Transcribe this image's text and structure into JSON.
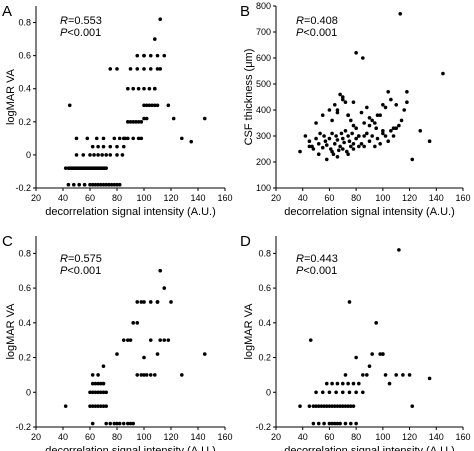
{
  "chart_data": [
    {
      "type": "scatter",
      "panel": "A",
      "xlabel": "decorrelation signal intensity (A.U.)",
      "ylabel": "logMAR VA",
      "xlim": [
        20,
        160
      ],
      "ylim": [
        -0.2,
        0.9
      ],
      "xticks": [
        20,
        40,
        60,
        80,
        100,
        120,
        140,
        160
      ],
      "yticks": [
        -0.2,
        0,
        0.2,
        0.4,
        0.6,
        0.8
      ],
      "ytick_labels": [
        "-0.2",
        "0",
        "0.2",
        "0.4",
        "0.6",
        "0.8"
      ],
      "stats": {
        "r_label": "R",
        "r_value": "=0.553",
        "p_label": "P",
        "p_value": "<0.001"
      },
      "x": [
        42,
        44,
        45,
        46,
        47,
        48,
        49,
        50,
        51,
        52,
        53,
        54,
        55,
        56,
        57,
        58,
        59,
        60,
        61,
        62,
        63,
        64,
        65,
        66,
        67,
        68,
        69,
        70,
        71,
        72,
        44,
        48,
        52,
        56,
        60,
        62,
        64,
        66,
        68,
        70,
        72,
        74,
        76,
        78,
        80,
        82,
        50,
        55,
        60,
        63,
        66,
        69,
        72,
        75,
        80,
        84,
        62,
        66,
        70,
        75,
        80,
        85,
        45,
        50,
        58,
        65,
        70,
        78,
        82,
        86,
        88,
        90,
        92,
        94,
        96,
        98,
        100,
        102,
        104,
        106,
        108,
        110,
        88,
        92,
        96,
        100,
        104,
        108,
        90,
        95,
        100,
        105,
        110,
        95,
        100,
        105,
        110,
        115,
        100,
        108,
        112,
        118,
        122,
        128,
        135,
        145,
        108,
        112,
        75,
        80,
        92,
        96,
        98,
        100,
        102,
        85,
        88
      ],
      "y": [
        -0.08,
        -0.08,
        -0.08,
        -0.08,
        -0.08,
        -0.08,
        -0.08,
        -0.08,
        -0.08,
        -0.08,
        -0.08,
        -0.08,
        -0.08,
        -0.08,
        -0.08,
        -0.08,
        -0.08,
        -0.08,
        -0.08,
        -0.08,
        -0.08,
        -0.08,
        -0.08,
        -0.08,
        -0.08,
        -0.08,
        -0.08,
        -0.08,
        -0.08,
        -0.08,
        -0.18,
        -0.18,
        -0.18,
        -0.18,
        -0.18,
        -0.18,
        -0.18,
        -0.18,
        -0.18,
        -0.18,
        -0.18,
        -0.18,
        -0.18,
        -0.18,
        -0.18,
        -0.18,
        0,
        0,
        0,
        0,
        0,
        0,
        0,
        0,
        0,
        0,
        0.05,
        0.05,
        0.05,
        0.05,
        0.05,
        0.05,
        0.3,
        0.1,
        0.1,
        0.1,
        0.1,
        0.1,
        0.1,
        0.1,
        0.2,
        0.2,
        0.2,
        0.2,
        0.2,
        0.2,
        0.3,
        0.3,
        0.3,
        0.3,
        0.3,
        0.3,
        0.4,
        0.4,
        0.4,
        0.4,
        0.4,
        0.4,
        0.52,
        0.52,
        0.52,
        0.52,
        0.52,
        0.6,
        0.6,
        0.6,
        0.6,
        0.6,
        0.6,
        0.7,
        0.82,
        0.3,
        0.22,
        0.1,
        0.08,
        0.22,
        0.4,
        0.52,
        0.52,
        0.52,
        0.1,
        0.1,
        0.1,
        0.22,
        0.22,
        0.1,
        0.1
      ]
    },
    {
      "type": "scatter",
      "panel": "B",
      "xlabel": "decorrelation signal intensity (A.U.)",
      "ylabel": "CSF thickness (μm)",
      "xlim": [
        20,
        160
      ],
      "ylim": [
        100,
        800
      ],
      "xticks": [
        20,
        40,
        60,
        80,
        100,
        120,
        140,
        160
      ],
      "xtick_labels": [
        "20",
        "40",
        "60",
        "80",
        "100",
        "120",
        "140",
        "160"
      ],
      "yticks": [
        100,
        200,
        300,
        400,
        500,
        600,
        700,
        800
      ],
      "stats": {
        "r_label": "R",
        "r_value": "=0.408",
        "p_label": "P",
        "p_value": "<0.001"
      },
      "x": [
        38,
        42,
        45,
        47,
        48,
        50,
        52,
        53,
        55,
        56,
        57,
        58,
        60,
        61,
        62,
        63,
        64,
        65,
        66,
        67,
        68,
        69,
        70,
        71,
        72,
        73,
        74,
        75,
        76,
        77,
        78,
        80,
        82,
        84,
        86,
        88,
        90,
        92,
        94,
        96,
        98,
        100,
        102,
        104,
        106,
        108,
        110,
        112,
        114,
        116,
        118,
        50,
        55,
        60,
        64,
        66,
        68,
        70,
        72,
        74,
        76,
        78,
        80,
        84,
        88,
        92,
        96,
        100,
        104,
        108,
        45,
        52,
        58,
        62,
        66,
        70,
        74,
        78,
        82,
        86,
        90,
        94,
        98,
        102,
        106,
        110,
        113,
        118,
        122,
        128,
        135,
        145,
        62,
        66,
        70,
        74,
        78,
        82,
        86,
        90,
        95,
        100,
        80,
        85
      ],
      "y": [
        240,
        300,
        280,
        260,
        250,
        290,
        270,
        310,
        255,
        300,
        280,
        265,
        290,
        250,
        310,
        230,
        270,
        300,
        285,
        245,
        260,
        310,
        290,
        275,
        320,
        240,
        300,
        280,
        260,
        310,
        250,
        290,
        300,
        270,
        260,
        310,
        280,
        300,
        260,
        290,
        270,
        310,
        300,
        280,
        320,
        300,
        330,
        340,
        360,
        400,
        430,
        350,
        380,
        400,
        420,
        390,
        460,
        440,
        430,
        380,
        360,
        340,
        330,
        390,
        410,
        360,
        380,
        420,
        470,
        330,
        260,
        230,
        210,
        240,
        220,
        250,
        230,
        270,
        260,
        300,
        340,
        350,
        380,
        410,
        440,
        420,
        770,
        470,
        210,
        320,
        280,
        540,
        360,
        400,
        450,
        380,
        430,
        300,
        350,
        370,
        330,
        320,
        620,
        600
      ]
    },
    {
      "type": "scatter",
      "panel": "C",
      "xlabel": "decorrelation signal intensity (A.U.)",
      "ylabel": "logMAR VA",
      "xlim": [
        20,
        160
      ],
      "ylim": [
        -0.2,
        0.9
      ],
      "xticks": [
        20,
        40,
        60,
        80,
        100,
        120,
        140,
        160
      ],
      "yticks": [
        -0.2,
        0,
        0.2,
        0.4,
        0.6,
        0.8
      ],
      "ytick_labels": [
        "-0.2",
        "0",
        "0.2",
        "0.4",
        "0.6",
        "0.8"
      ],
      "stats": {
        "r_label": "R",
        "r_value": "=0.575",
        "p_label": "P",
        "p_value": "<0.001"
      },
      "x": [
        42,
        60,
        62,
        64,
        66,
        68,
        70,
        72,
        60,
        62,
        64,
        66,
        68,
        70,
        72,
        62,
        64,
        66,
        68,
        70,
        62,
        72,
        75,
        78,
        80,
        82,
        85,
        88,
        90,
        92,
        95,
        98,
        100,
        102,
        105,
        108,
        110,
        112,
        115,
        118,
        80,
        85,
        88,
        92,
        95,
        98,
        100,
        105,
        110,
        112,
        115,
        120,
        128,
        145,
        90,
        95,
        100,
        105,
        110,
        62,
        66,
        70
      ],
      "y": [
        -0.08,
        -0.08,
        -0.08,
        -0.08,
        -0.08,
        -0.08,
        -0.08,
        -0.08,
        0,
        0,
        0,
        0,
        0,
        0,
        0,
        0.05,
        0.05,
        0.05,
        0.05,
        0.05,
        -0.18,
        -0.18,
        -0.18,
        -0.18,
        -0.18,
        -0.18,
        -0.18,
        -0.18,
        -0.18,
        -0.18,
        0.1,
        0.1,
        0.1,
        0.1,
        0.1,
        0.1,
        0.22,
        0.3,
        0.3,
        0.3,
        0.22,
        0.3,
        0.3,
        0.4,
        0.4,
        0.52,
        0.52,
        0.52,
        0.52,
        0.7,
        0.6,
        0.52,
        0.1,
        0.22,
        0.3,
        0.52,
        0.2,
        0.3,
        0.52,
        0.1,
        0.1,
        0.15
      ]
    },
    {
      "type": "scatter",
      "panel": "D",
      "xlabel": "decorrelation signal intensity (A.U.)",
      "ylabel": "logMAR VA",
      "xlim": [
        20,
        160
      ],
      "ylim": [
        -0.2,
        0.9
      ],
      "xticks": [
        20,
        40,
        60,
        80,
        100,
        120,
        140,
        160
      ],
      "yticks": [
        -0.2,
        0,
        0.2,
        0.4,
        0.6,
        0.8
      ],
      "ytick_labels": [
        "-0.2",
        "0",
        "0.2",
        "0.4",
        "0.6",
        "0.8"
      ],
      "stats": {
        "r_label": "R",
        "r_value": "=0.443",
        "p_label": "P",
        "p_value": "<0.001"
      },
      "x": [
        38,
        45,
        48,
        50,
        52,
        54,
        56,
        58,
        60,
        62,
        64,
        66,
        68,
        70,
        72,
        74,
        76,
        78,
        48,
        52,
        56,
        60,
        64,
        68,
        72,
        76,
        80,
        50,
        55,
        60,
        65,
        70,
        75,
        80,
        85,
        58,
        62,
        66,
        70,
        74,
        78,
        82,
        46,
        75,
        80,
        85,
        88,
        90,
        92,
        95,
        98,
        100,
        102,
        105,
        110,
        115,
        120,
        122,
        135,
        112,
        100,
        62,
        66,
        72
      ],
      "y": [
        -0.08,
        -0.08,
        -0.08,
        -0.08,
        -0.08,
        -0.08,
        -0.08,
        -0.08,
        -0.08,
        -0.08,
        -0.08,
        -0.08,
        -0.08,
        -0.08,
        -0.08,
        -0.08,
        -0.08,
        -0.08,
        -0.18,
        -0.18,
        -0.18,
        -0.18,
        -0.18,
        -0.18,
        -0.18,
        -0.18,
        -0.18,
        0,
        0,
        0,
        0,
        0,
        0,
        0,
        0,
        0.05,
        0.05,
        0.05,
        0.05,
        0.05,
        0.05,
        0.05,
        0.3,
        0.52,
        0.2,
        0.1,
        0.1,
        0.15,
        0.22,
        0.4,
        0.22,
        0.22,
        0.1,
        0.05,
        0.1,
        0.1,
        0.1,
        -0.08,
        0.08,
        0.82,
        0.22,
        -0.18,
        -0.18,
        0.1
      ]
    }
  ]
}
